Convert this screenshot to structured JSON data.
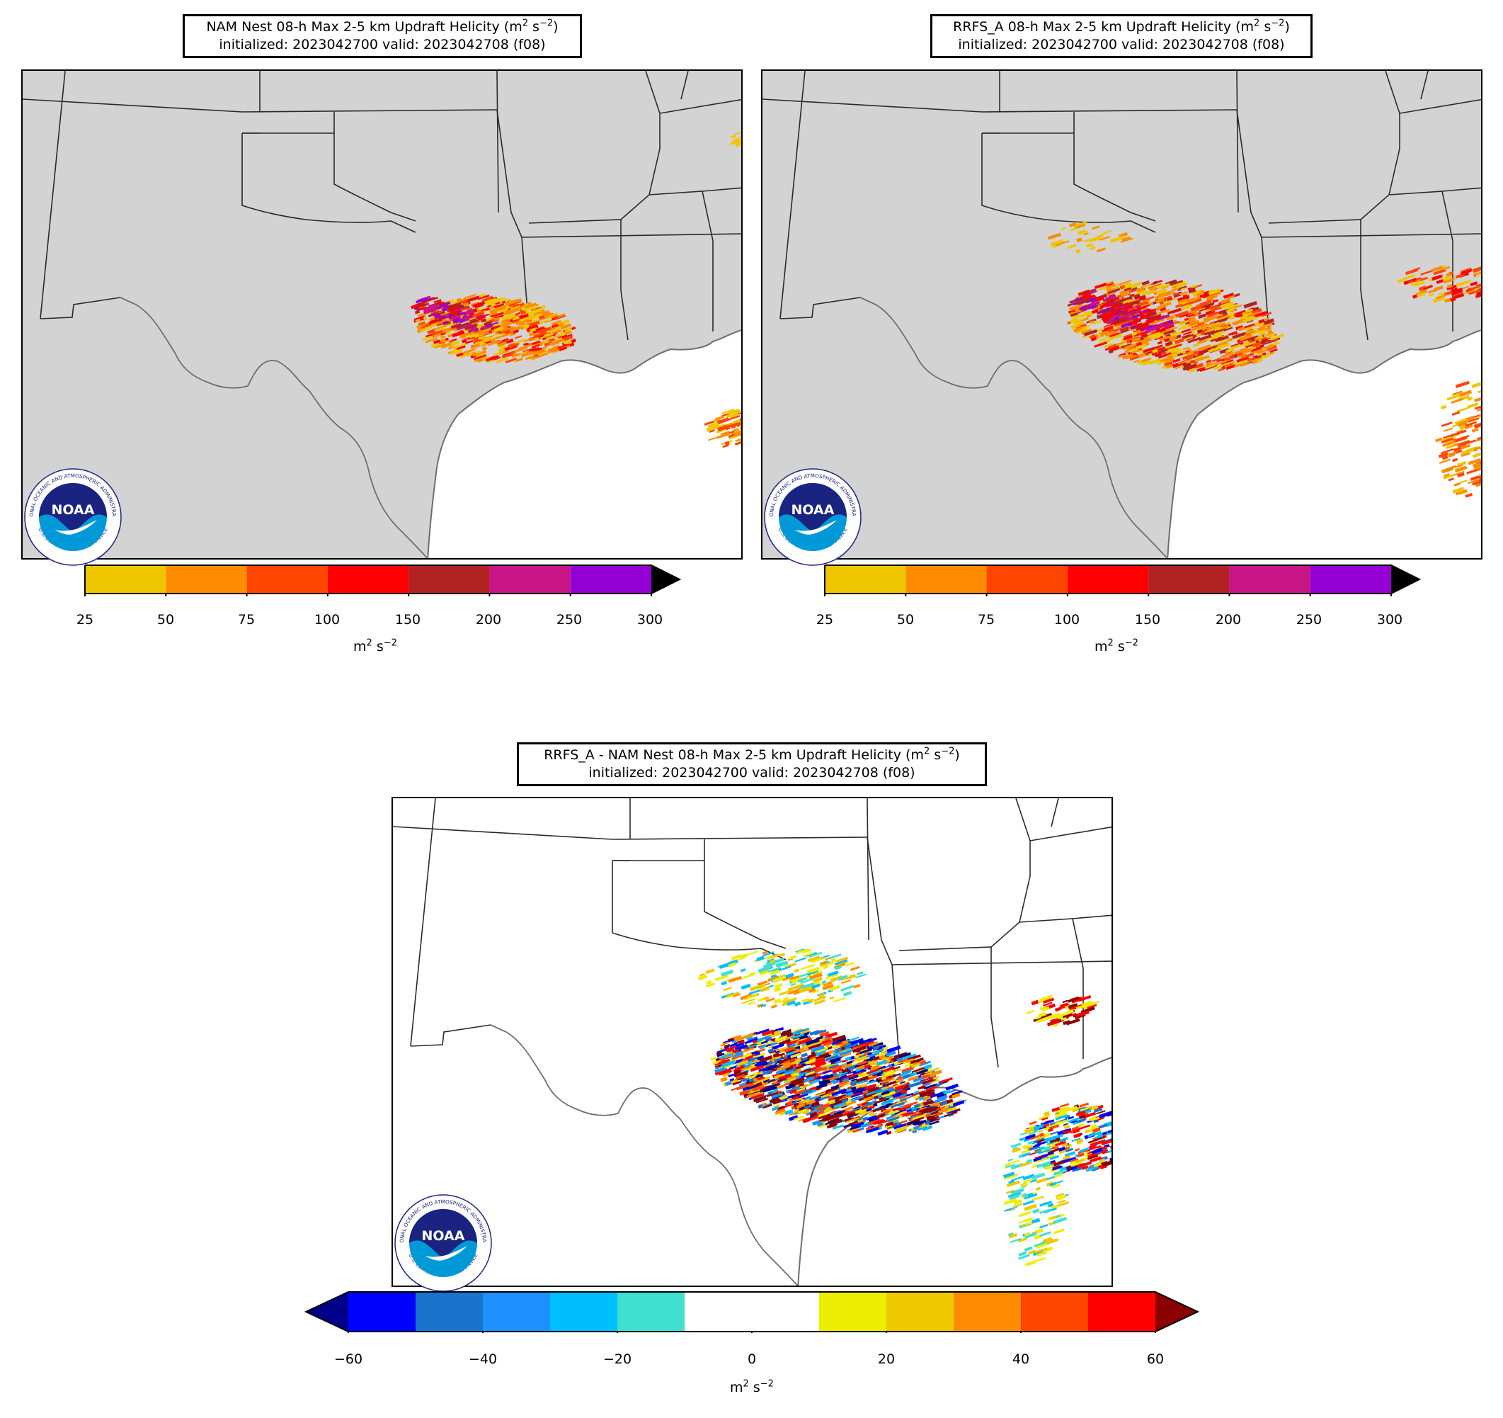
{
  "panels": [
    {
      "id": "nam",
      "title_pre": "NAM Nest 08-h Max 2-5 km Updraft Helicity (m",
      "title_sup1": "2",
      "title_mid": " s",
      "title_sup2": "−2",
      "title_post": ")",
      "title_line2": "initialized: 2023042700 valid: 2023042708 (f08)"
    },
    {
      "id": "rrfs",
      "title_pre": "RRFS_A 08-h Max 2-5 km Updraft Helicity (m",
      "title_sup1": "2",
      "title_mid": " s",
      "title_sup2": "−2",
      "title_post": ")",
      "title_line2": "initialized: 2023042700 valid: 2023042708 (f08)"
    },
    {
      "id": "diff",
      "title_pre": "RRFS_A - NAM Nest 08-h Max 2-5 km Updraft Helicity (m",
      "title_sup1": "2",
      "title_mid": " s",
      "title_sup2": "−2",
      "title_post": ")",
      "title_line2": "initialized: 2023042700 valid: 2023042708 (f08)"
    }
  ],
  "colorbar_uh": {
    "ticks": [
      "25",
      "50",
      "75",
      "100",
      "150",
      "200",
      "250",
      "300"
    ],
    "colors": [
      "#eec600",
      "#ff8c00",
      "#ff4500",
      "#ff0000",
      "#b22222",
      "#c71585",
      "#9400d3"
    ],
    "extend_color": "#000000",
    "unit_base": "m",
    "unit_sup1": "2",
    "unit_mid": " s",
    "unit_sup2": "−2"
  },
  "colorbar_diff": {
    "ticks": [
      "−60",
      "−40",
      "−20",
      "0",
      "20",
      "40",
      "60"
    ],
    "colors": [
      "#0000ff",
      "#1874cd",
      "#1e90ff",
      "#00bfff",
      "#40e0d0",
      "#ffffff",
      "#ffffff",
      "#eeee00",
      "#eec900",
      "#ff8c00",
      "#ff4500",
      "#ff0000"
    ],
    "extend_low": "#00008b",
    "extend_high": "#8b0000",
    "unit_base": "m",
    "unit_sup1": "2",
    "unit_mid": " s",
    "unit_sup2": "−2"
  },
  "logo": {
    "text": "NOAA",
    "ring_text": "NATIONAL OCEANIC AND ATMOSPHERIC ADMINISTRATION",
    "ring_text_bottom": "U.S. DEPARTMENT OF COMMERCE",
    "navy": "#1a2380",
    "blue": "#0099d8"
  },
  "map_colors": {
    "land": "#d3d3d3",
    "water": "#ffffff",
    "border": "#2a2a2a",
    "coast": "#6e6e6e"
  }
}
